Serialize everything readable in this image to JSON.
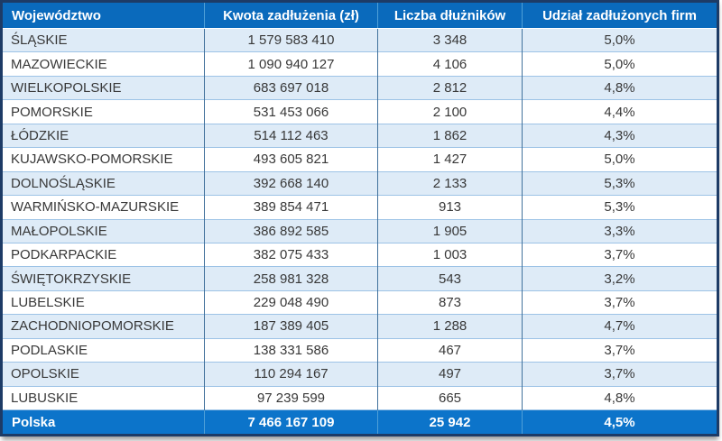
{
  "table": {
    "columns": [
      {
        "label": "Województwo"
      },
      {
        "label": "Kwota zadłużenia (zł)"
      },
      {
        "label": "Liczba dłużników"
      },
      {
        "label": "Udział zadłużonych firm"
      }
    ],
    "rows": [
      [
        "ŚLĄSKIE",
        "1 579 583 410",
        "3 348",
        "5,0%"
      ],
      [
        "MAZOWIECKIE",
        "1 090 940 127",
        "4 106",
        "5,0%"
      ],
      [
        "WIELKOPOLSKIE",
        "683 697 018",
        "2 812",
        "4,8%"
      ],
      [
        "POMORSKIE",
        "531 453 066",
        "2 100",
        "4,4%"
      ],
      [
        "ŁÓDZKIE",
        "514 112 463",
        "1 862",
        "4,3%"
      ],
      [
        "KUJAWSKO-POMORSKIE",
        "493 605 821",
        "1 427",
        "5,0%"
      ],
      [
        "DOLNOŚLĄSKIE",
        "392 668 140",
        "2 133",
        "5,3%"
      ],
      [
        "WARMIŃSKO-MAZURSKIE",
        "389 854 471",
        "913",
        "5,3%"
      ],
      [
        "MAŁOPOLSKIE",
        "386 892 585",
        "1 905",
        "3,3%"
      ],
      [
        "PODKARPACKIE",
        "382 075 433",
        "1 003",
        "3,7%"
      ],
      [
        "ŚWIĘTOKRZYSKIE",
        "258 981 328",
        "543",
        "3,2%"
      ],
      [
        "LUBELSKIE",
        "229 048 490",
        "873",
        "3,7%"
      ],
      [
        "ZACHODNIOPOMORSKIE",
        "187 389 405",
        "1 288",
        "4,7%"
      ],
      [
        "PODLASKIE",
        "138 331 586",
        "467",
        "3,7%"
      ],
      [
        "OPOLSKIE",
        "110 294 167",
        "497",
        "3,7%"
      ],
      [
        "LUBUSKIE",
        "97 239 599",
        "665",
        "4,8%"
      ]
    ],
    "footer": [
      "Polska",
      "7 466 167 109",
      "25 942",
      "4,5%"
    ]
  },
  "colors": {
    "header_bg": "#0a6abc",
    "footer_bg": "#0c74ca",
    "row_alt_bg": "#deebf7",
    "row_bg": "#ffffff",
    "outer_border": "#1d3b66",
    "column_divider": "#41719c",
    "row_divider": "#9dc3e6",
    "header_text": "#ffffff",
    "body_text": "#383838"
  },
  "chart_data": {
    "type": "table",
    "title": "",
    "columns": [
      "Województwo",
      "Kwota zadłużenia (zł)",
      "Liczba dłużników",
      "Udział zadłużonych firm"
    ],
    "rows": [
      [
        "ŚLĄSKIE",
        1579583410,
        3348,
        "5,0%"
      ],
      [
        "MAZOWIECKIE",
        1090940127,
        4106,
        "5,0%"
      ],
      [
        "WIELKOPOLSKIE",
        683697018,
        2812,
        "4,8%"
      ],
      [
        "POMORSKIE",
        531453066,
        2100,
        "4,4%"
      ],
      [
        "ŁÓDZKIE",
        514112463,
        1862,
        "4,3%"
      ],
      [
        "KUJAWSKO-POMORSKIE",
        493605821,
        1427,
        "5,0%"
      ],
      [
        "DOLNOŚLĄSKIE",
        392668140,
        2133,
        "5,3%"
      ],
      [
        "WARMIŃSKO-MAZURSKIE",
        389854471,
        913,
        "5,3%"
      ],
      [
        "MAŁOPOLSKIE",
        386892585,
        1905,
        "3,3%"
      ],
      [
        "PODKARPACKIE",
        382075433,
        1003,
        "3,7%"
      ],
      [
        "ŚWIĘTOKRZYSKIE",
        258981328,
        543,
        "3,2%"
      ],
      [
        "LUBELSKIE",
        229048490,
        873,
        "3,7%"
      ],
      [
        "ZACHODNIOPOMORSKIE",
        187389405,
        1288,
        "4,7%"
      ],
      [
        "PODLASKIE",
        138331586,
        467,
        "3,7%"
      ],
      [
        "OPOLSKIE",
        110294167,
        497,
        "3,7%"
      ],
      [
        "LUBUSKIE",
        97239599,
        665,
        "4,8%"
      ]
    ],
    "total_row": [
      "Polska",
      7466167109,
      25942,
      "4,5%"
    ]
  }
}
